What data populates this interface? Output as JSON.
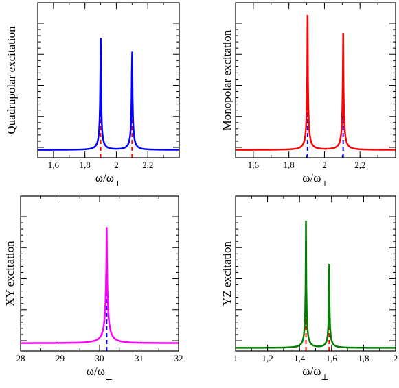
{
  "chart_data": [
    {
      "type": "line",
      "xlabel": "ω/ω",
      "xlabel_sub": "⊥",
      "ylabel": "Quadrupolar excitation",
      "xlim": [
        1.5,
        2.4
      ],
      "xticks": [
        "1,6",
        "1,8",
        "2",
        "2,2"
      ],
      "xtick_values": [
        1.6,
        1.8,
        2.0,
        2.2
      ],
      "curve_color": "#0000ff",
      "marker_color": "#ff0000",
      "peaks": [
        {
          "x": 1.9,
          "height": 0.92,
          "width": 0.045
        },
        {
          "x": 2.1,
          "height": 0.88,
          "width": 0.045
        }
      ],
      "baseline": 0.05,
      "dashed_lines": [
        {
          "x": 1.9,
          "top": 0.77
        },
        {
          "x": 2.1,
          "top": 0.6
        }
      ]
    },
    {
      "type": "line",
      "xlabel": "ω/ω",
      "xlabel_sub": "⊥",
      "ylabel": "Monopolar excitation",
      "xlim": [
        1.5,
        2.4
      ],
      "xticks": [
        "1,6",
        "1,8",
        "2",
        "2,2"
      ],
      "xtick_values": [
        1.6,
        1.8,
        2.0,
        2.2
      ],
      "curve_color": "#ff0000",
      "marker_color": "#0000ff",
      "peaks": [
        {
          "x": 1.905,
          "height": 0.92,
          "width": 0.045
        },
        {
          "x": 2.105,
          "height": 0.88,
          "width": 0.045
        }
      ],
      "baseline": 0.05,
      "dashed_lines": [
        {
          "x": 1.905,
          "top": 0.78
        },
        {
          "x": 2.105,
          "top": 0.6
        }
      ]
    },
    {
      "type": "line",
      "xlabel": "ω/ω",
      "xlabel_sub": "⊥",
      "ylabel": "XY excitation",
      "xlim": [
        28,
        32
      ],
      "xticks": [
        "28",
        "29",
        "30",
        "31",
        "32"
      ],
      "xtick_values": [
        28,
        29,
        30,
        31,
        32
      ],
      "curve_color": "#ff00ff",
      "marker_color": "#0000ff",
      "peaks": [
        {
          "x": 30.18,
          "height": 0.8,
          "width": 0.35
        }
      ],
      "baseline": 0.05,
      "dashed_lines": [
        {
          "x": 30.18,
          "top": 0.74
        }
      ]
    },
    {
      "type": "line",
      "xlabel": "ω/ω",
      "xlabel_sub": "⊥",
      "ylabel": "YZ excitation",
      "xlim": [
        1,
        2
      ],
      "xticks": [
        "1",
        "1,2",
        "1,4",
        "1,6",
        "1,8",
        "2"
      ],
      "xtick_values": [
        1.0,
        1.2,
        1.4,
        1.6,
        1.8,
        2.0
      ],
      "curve_color": "#008000",
      "marker_color": "#ff0000",
      "peaks": [
        {
          "x": 1.44,
          "height": 0.84,
          "width": 0.045
        },
        {
          "x": 1.585,
          "height": 0.56,
          "width": 0.045
        }
      ],
      "baseline": 0.02,
      "dashed_lines": [
        {
          "x": 1.44,
          "top": 0.54
        },
        {
          "x": 1.585,
          "top": 0.5
        }
      ]
    }
  ]
}
